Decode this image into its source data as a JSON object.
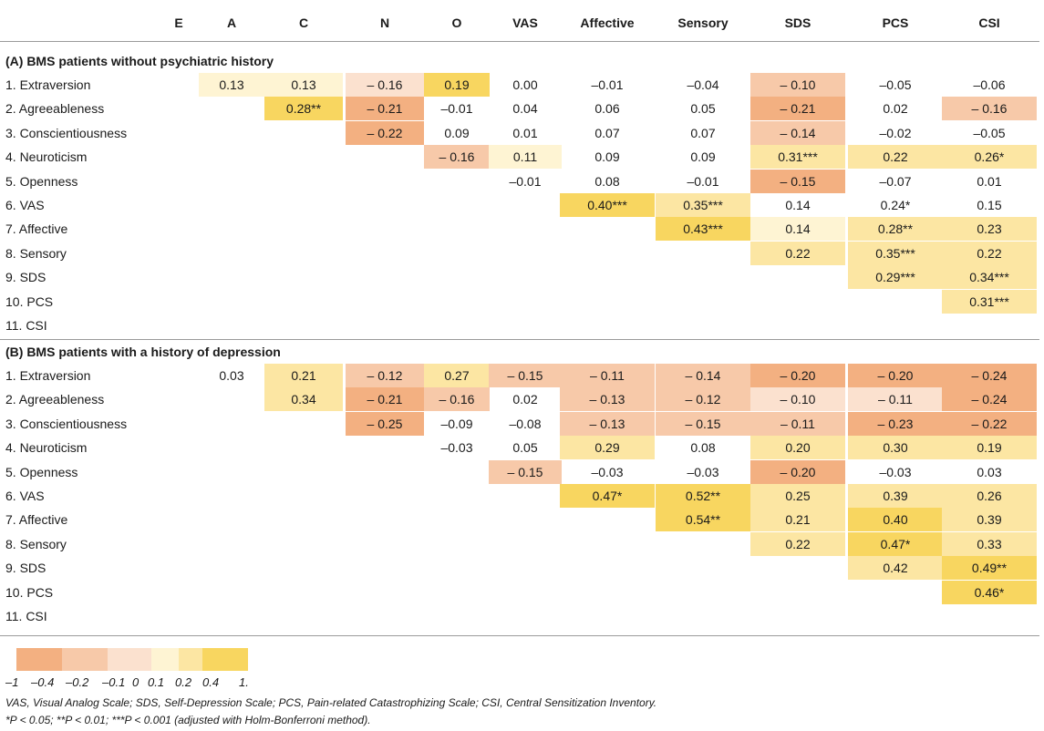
{
  "columns": [
    "E",
    "A",
    "C",
    "N",
    "O",
    "VAS",
    "Affective",
    "Sensory",
    "SDS",
    "PCS",
    "CSI"
  ],
  "colors": {
    "neg_strong": "#f3b081",
    "neg_mid": "#f7c9a9",
    "neg_weak": "#fbe1cf",
    "pos_weak": "#fef4d3",
    "pos_mid": "#fce6a3",
    "pos_strong": "#f8d660",
    "pos_peak": "#f6d24c"
  },
  "sections": [
    {
      "title": "(A) BMS patients without psychiatric history",
      "rows": [
        {
          "label": "1.  Extraversion",
          "cells": [
            {
              "col": 1,
              "text": "0.13",
              "color": "#fef4d3"
            },
            {
              "col": 2,
              "text": "0.13",
              "color": "#fef4d3"
            },
            {
              "col": 3,
              "text": "– 0.16",
              "color": "#fbe1cf"
            },
            {
              "col": 4,
              "text": "0.19",
              "color": "#f8d660"
            },
            {
              "col": 5,
              "text": "0.00",
              "color": ""
            },
            {
              "col": 6,
              "text": "–0.01",
              "color": ""
            },
            {
              "col": 7,
              "text": "–0.04",
              "color": ""
            },
            {
              "col": 8,
              "text": "– 0.10",
              "color": "#f7c9a9"
            },
            {
              "col": 9,
              "text": "–0.05",
              "color": ""
            },
            {
              "col": 10,
              "text": "–0.06",
              "color": ""
            }
          ]
        },
        {
          "label": "2.  Agreeableness",
          "cells": [
            {
              "col": 2,
              "text": "0.28**",
              "color": "#f8d660"
            },
            {
              "col": 3,
              "text": "– 0.21",
              "color": "#f3b081"
            },
            {
              "col": 4,
              "text": "–0.01",
              "color": ""
            },
            {
              "col": 5,
              "text": "0.04",
              "color": ""
            },
            {
              "col": 6,
              "text": "0.06",
              "color": ""
            },
            {
              "col": 7,
              "text": "0.05",
              "color": ""
            },
            {
              "col": 8,
              "text": "– 0.21",
              "color": "#f3b081"
            },
            {
              "col": 9,
              "text": "0.02",
              "color": ""
            },
            {
              "col": 10,
              "text": "– 0.16",
              "color": "#f7c9a9"
            }
          ]
        },
        {
          "label": "3.  Conscientiousness",
          "cells": [
            {
              "col": 3,
              "text": "– 0.22",
              "color": "#f3b081"
            },
            {
              "col": 4,
              "text": "0.09",
              "color": ""
            },
            {
              "col": 5,
              "text": "0.01",
              "color": ""
            },
            {
              "col": 6,
              "text": "0.07",
              "color": ""
            },
            {
              "col": 7,
              "text": "0.07",
              "color": ""
            },
            {
              "col": 8,
              "text": "– 0.14",
              "color": "#f7c9a9"
            },
            {
              "col": 9,
              "text": "–0.02",
              "color": ""
            },
            {
              "col": 10,
              "text": "–0.05",
              "color": ""
            }
          ]
        },
        {
          "label": "4.  Neuroticism",
          "cells": [
            {
              "col": 4,
              "text": "– 0.16",
              "color": "#f7c9a9"
            },
            {
              "col": 5,
              "text": "0.11",
              "color": "#fef4d3"
            },
            {
              "col": 6,
              "text": "0.09",
              "color": ""
            },
            {
              "col": 7,
              "text": "0.09",
              "color": ""
            },
            {
              "col": 8,
              "text": "0.31***",
              "color": "#fce6a3"
            },
            {
              "col": 9,
              "text": "0.22",
              "color": "#fce6a3"
            },
            {
              "col": 10,
              "text": "0.26*",
              "color": "#fce6a3"
            }
          ]
        },
        {
          "label": "5.  Openness",
          "cells": [
            {
              "col": 5,
              "text": "–0.01",
              "color": ""
            },
            {
              "col": 6,
              "text": "0.08",
              "color": ""
            },
            {
              "col": 7,
              "text": "–0.01",
              "color": ""
            },
            {
              "col": 8,
              "text": "– 0.15",
              "color": "#f3b081"
            },
            {
              "col": 9,
              "text": "–0.07",
              "color": ""
            },
            {
              "col": 10,
              "text": "0.01",
              "color": ""
            }
          ]
        },
        {
          "label": "6.  VAS",
          "cells": [
            {
              "col": 6,
              "text": "0.40***",
              "color": "#f8d660"
            },
            {
              "col": 7,
              "text": "0.35***",
              "color": "#fce6a3"
            },
            {
              "col": 8,
              "text": "0.14",
              "color": ""
            },
            {
              "col": 9,
              "text": "0.24*",
              "color": ""
            },
            {
              "col": 10,
              "text": "0.15",
              "color": ""
            }
          ]
        },
        {
          "label": "7.  Affective",
          "cells": [
            {
              "col": 7,
              "text": "0.43***",
              "color": "#f8d660"
            },
            {
              "col": 8,
              "text": "0.14",
              "color": "#fef4d3"
            },
            {
              "col": 9,
              "text": "0.28**",
              "color": "#fce6a3"
            },
            {
              "col": 10,
              "text": "0.23",
              "color": "#fce6a3"
            }
          ]
        },
        {
          "label": "8.  Sensory",
          "cells": [
            {
              "col": 8,
              "text": "0.22",
              "color": "#fce6a3"
            },
            {
              "col": 9,
              "text": "0.35***",
              "color": "#fce6a3"
            },
            {
              "col": 10,
              "text": "0.22",
              "color": "#fce6a3"
            }
          ]
        },
        {
          "label": "9.  SDS",
          "cells": [
            {
              "col": 9,
              "text": "0.29***",
              "color": "#fce6a3"
            },
            {
              "col": 10,
              "text": "0.34***",
              "color": "#fce6a3"
            }
          ]
        },
        {
          "label": "10.  PCS",
          "cells": [
            {
              "col": 10,
              "text": "0.31***",
              "color": "#fce6a3"
            }
          ]
        },
        {
          "label": "11.  CSI",
          "cells": []
        }
      ]
    },
    {
      "title": "(B) BMS patients with a history of depression",
      "rows": [
        {
          "label": "1.  Extraversion",
          "cells": [
            {
              "col": 1,
              "text": "0.03",
              "color": ""
            },
            {
              "col": 2,
              "text": "0.21",
              "color": "#fce6a3"
            },
            {
              "col": 3,
              "text": "– 0.12",
              "color": "#f7c9a9"
            },
            {
              "col": 4,
              "text": "0.27",
              "color": "#fce6a3"
            },
            {
              "col": 5,
              "text": "– 0.15",
              "color": "#f7c9a9"
            },
            {
              "col": 6,
              "text": "– 0.11",
              "color": "#f7c9a9"
            },
            {
              "col": 7,
              "text": "– 0.14",
              "color": "#f7c9a9"
            },
            {
              "col": 8,
              "text": "– 0.20",
              "color": "#f3b081"
            },
            {
              "col": 9,
              "text": "– 0.20",
              "color": "#f3b081"
            },
            {
              "col": 10,
              "text": "– 0.24",
              "color": "#f3b081"
            }
          ]
        },
        {
          "label": "2.  Agreeableness",
          "cells": [
            {
              "col": 2,
              "text": "0.34",
              "color": "#fce6a3"
            },
            {
              "col": 3,
              "text": "– 0.21",
              "color": "#f3b081"
            },
            {
              "col": 4,
              "text": "– 0.16",
              "color": "#f7c9a9"
            },
            {
              "col": 5,
              "text": "0.02",
              "color": ""
            },
            {
              "col": 6,
              "text": "– 0.13",
              "color": "#f7c9a9"
            },
            {
              "col": 7,
              "text": "– 0.12",
              "color": "#f7c9a9"
            },
            {
              "col": 8,
              "text": "– 0.10",
              "color": "#fbe1cf"
            },
            {
              "col": 9,
              "text": "– 0.11",
              "color": "#fbe1cf"
            },
            {
              "col": 10,
              "text": "– 0.24",
              "color": "#f3b081"
            }
          ]
        },
        {
          "label": "3.  Conscientiousness",
          "cells": [
            {
              "col": 3,
              "text": "– 0.25",
              "color": "#f3b081"
            },
            {
              "col": 4,
              "text": "–0.09",
              "color": ""
            },
            {
              "col": 5,
              "text": "–0.08",
              "color": ""
            },
            {
              "col": 6,
              "text": "– 0.13",
              "color": "#f7c9a9"
            },
            {
              "col": 7,
              "text": "– 0.15",
              "color": "#f7c9a9"
            },
            {
              "col": 8,
              "text": "– 0.11",
              "color": "#f7c9a9"
            },
            {
              "col": 9,
              "text": "– 0.23",
              "color": "#f3b081"
            },
            {
              "col": 10,
              "text": "– 0.22",
              "color": "#f3b081"
            }
          ]
        },
        {
          "label": "4.  Neuroticism",
          "cells": [
            {
              "col": 4,
              "text": "–0.03",
              "color": ""
            },
            {
              "col": 5,
              "text": "0.05",
              "color": ""
            },
            {
              "col": 6,
              "text": "0.29",
              "color": "#fce6a3"
            },
            {
              "col": 7,
              "text": "0.08",
              "color": ""
            },
            {
              "col": 8,
              "text": "0.20",
              "color": "#fce6a3"
            },
            {
              "col": 9,
              "text": "0.30",
              "color": "#fce6a3"
            },
            {
              "col": 10,
              "text": "0.19",
              "color": "#fce6a3"
            }
          ]
        },
        {
          "label": "5.  Openness",
          "cells": [
            {
              "col": 5,
              "text": "– 0.15",
              "color": "#f7c9a9"
            },
            {
              "col": 6,
              "text": "–0.03",
              "color": ""
            },
            {
              "col": 7,
              "text": "–0.03",
              "color": ""
            },
            {
              "col": 8,
              "text": "– 0.20",
              "color": "#f3b081"
            },
            {
              "col": 9,
              "text": "–0.03",
              "color": ""
            },
            {
              "col": 10,
              "text": "0.03",
              "color": ""
            }
          ]
        },
        {
          "label": "6.  VAS",
          "cells": [
            {
              "col": 6,
              "text": "0.47*",
              "color": "#f8d660"
            },
            {
              "col": 7,
              "text": "0.52**",
              "color": "#f8d660"
            },
            {
              "col": 8,
              "text": "0.25",
              "color": "#fce6a3"
            },
            {
              "col": 9,
              "text": "0.39",
              "color": "#fce6a3"
            },
            {
              "col": 10,
              "text": "0.26",
              "color": "#fce6a3"
            }
          ]
        },
        {
          "label": "7.  Affective",
          "cells": [
            {
              "col": 7,
              "text": "0.54**",
              "color": "#f8d660"
            },
            {
              "col": 8,
              "text": "0.21",
              "color": "#fce6a3"
            },
            {
              "col": 9,
              "text": "0.40",
              "color": "#f8d660"
            },
            {
              "col": 10,
              "text": "0.39",
              "color": "#fce6a3"
            }
          ]
        },
        {
          "label": "8.  Sensory",
          "cells": [
            {
              "col": 8,
              "text": "0.22",
              "color": "#fce6a3"
            },
            {
              "col": 9,
              "text": "0.47*",
              "color": "#f8d660"
            },
            {
              "col": 10,
              "text": "0.33",
              "color": "#fce6a3"
            }
          ]
        },
        {
          "label": "9.  SDS",
          "cells": [
            {
              "col": 9,
              "text": "0.42",
              "color": "#fce6a3"
            },
            {
              "col": 10,
              "text": "0.49**",
              "color": "#f8d660"
            }
          ]
        },
        {
          "label": "10.  PCS",
          "cells": [
            {
              "col": 10,
              "text": "0.46*",
              "color": "#f8d660"
            }
          ]
        },
        {
          "label": "11.  CSI",
          "cells": []
        }
      ]
    }
  ],
  "legend": {
    "swatches": [
      {
        "name": "neg-strong",
        "color": "#f3b081"
      },
      {
        "name": "neg-mid",
        "color": "#f7c9a9"
      },
      {
        "name": "neg-weak",
        "color": "#fbe1cf"
      },
      {
        "name": "zero",
        "color": "#ffffff"
      },
      {
        "name": "pos-weak",
        "color": "#fef4d3"
      },
      {
        "name": "pos-mid",
        "color": "#fce6a3"
      },
      {
        "name": "pos-strong",
        "color": "#f8d660"
      }
    ],
    "ticks": [
      "–1",
      "–0.4",
      "–0.2",
      "–0.1",
      "0",
      "0.1",
      "0.2",
      "0.4",
      "1."
    ]
  },
  "footnotes": [
    "VAS, Visual Analog Scale; SDS, Self-Depression Scale; PCS, Pain-related Catastrophizing Scale; CSI, Central Sensitization Inventory.",
    "*P < 0.05; **P < 0.01; ***P < 0.001 (adjusted with Holm-Bonferroni method)."
  ]
}
